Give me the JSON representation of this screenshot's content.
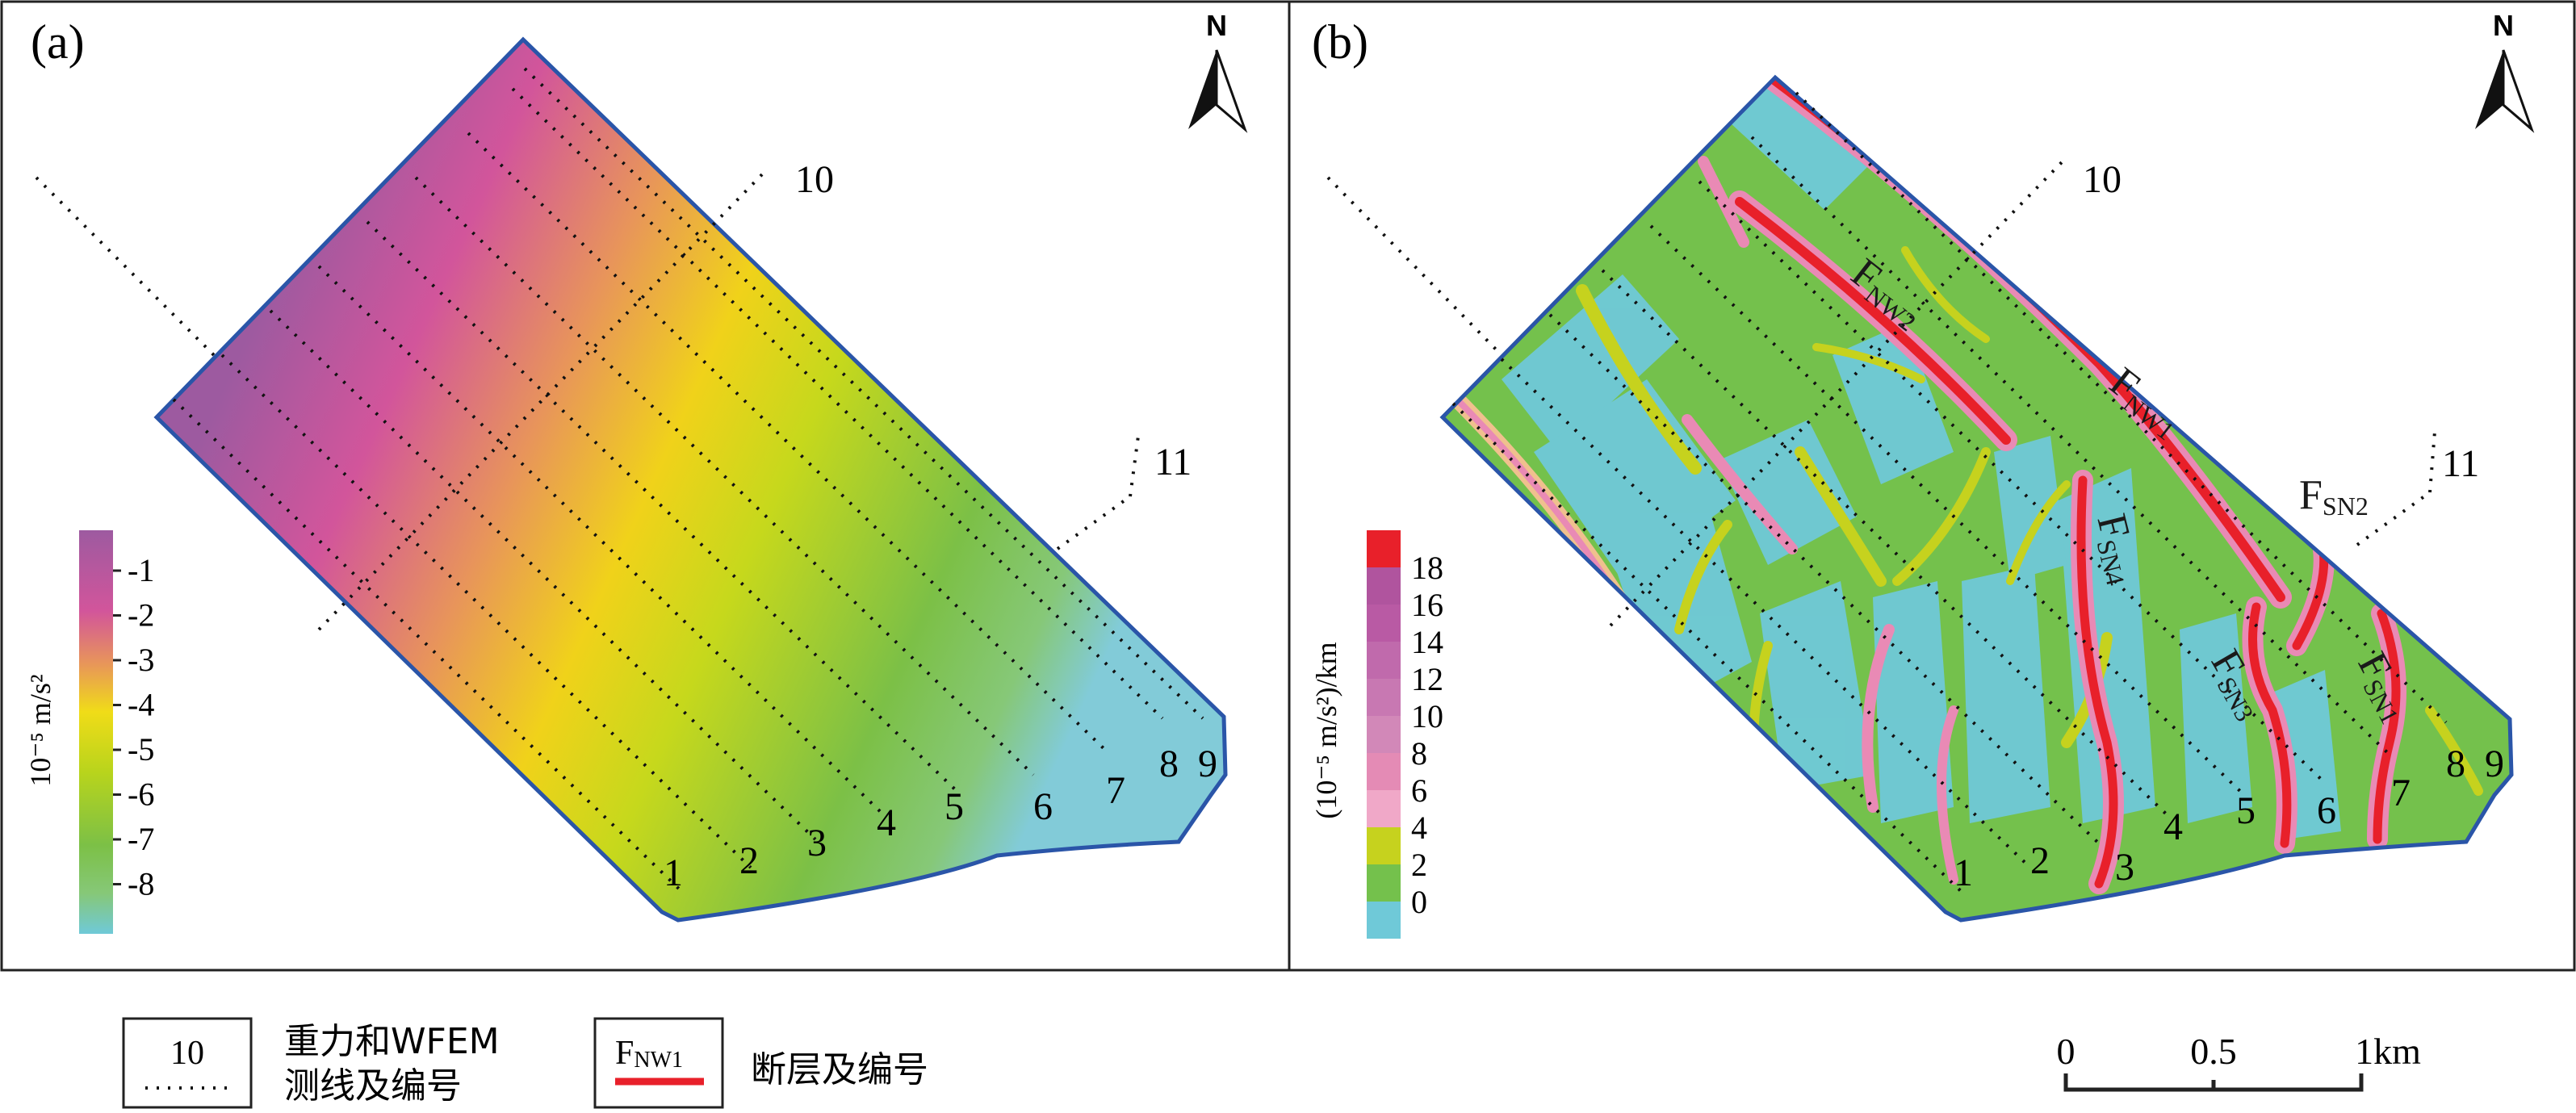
{
  "panels": [
    {
      "letter": "(a)",
      "north": "N",
      "colorbar": {
        "unit": "10⁻⁵ m/s²",
        "ticks": [
          "-1",
          "-2",
          "-3",
          "-4",
          "-5",
          "-6",
          "-7",
          "-8"
        ]
      },
      "line_numbers": [
        "1",
        "2",
        "3",
        "4",
        "5",
        "6",
        "7",
        "8",
        "9"
      ],
      "cross_lines": [
        "10",
        "11"
      ]
    },
    {
      "letter": "(b)",
      "north": "N",
      "colorbar": {
        "unit": "(10⁻⁵ m/s²)/km",
        "ticks": [
          "18",
          "16",
          "14",
          "12",
          "10",
          "8",
          "6",
          "4",
          "2",
          "0"
        ]
      },
      "line_numbers": [
        "1",
        "2",
        "3",
        "4",
        "5",
        "6",
        "7",
        "8",
        "9"
      ],
      "cross_lines": [
        "10",
        "11"
      ],
      "faults": [
        {
          "main": "F",
          "sub": "NW2"
        },
        {
          "main": "F",
          "sub": "NW1"
        },
        {
          "main": "F",
          "sub": "SN2"
        },
        {
          "main": "F",
          "sub": "SN4"
        },
        {
          "main": "F",
          "sub": "SN3"
        },
        {
          "main": "F",
          "sub": "SN1"
        }
      ]
    }
  ],
  "legend": {
    "survey": {
      "sample": "10",
      "text_line1": "重力和WFEM",
      "text_line2": "测线及编号"
    },
    "fault": {
      "sample_main": "F",
      "sample_sub": "NW1",
      "text": "断层及编号"
    }
  },
  "scalebar": {
    "labels": [
      "0",
      "0.5",
      "1km"
    ]
  },
  "colors": {
    "fault_red": "#e8202a",
    "boundary_blue": "#2a55a8",
    "cyan": "#6fc9d8",
    "green": "#7cc046",
    "yellow_green": "#c6d21e",
    "pink": "#e98ab5",
    "magenta": "#a5549c"
  }
}
